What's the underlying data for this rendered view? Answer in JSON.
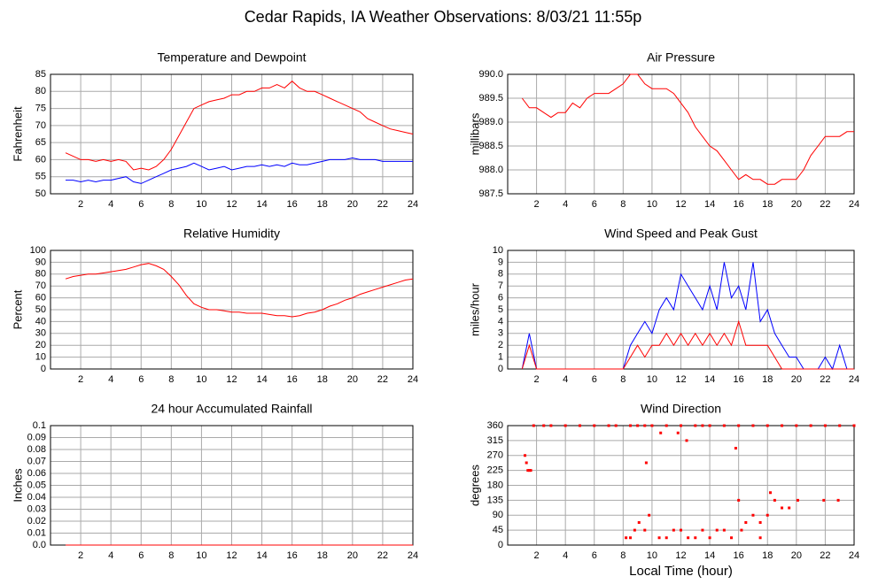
{
  "title": "Cedar Rapids, IA Weather Observations: 8/03/21 11:55p",
  "chart_data": [
    {
      "type": "line",
      "title": "Temperature and Dewpoint",
      "y_label": "Fahrenheit",
      "xlim": [
        0,
        24
      ],
      "xticks": [
        2,
        4,
        6,
        8,
        10,
        12,
        14,
        16,
        18,
        20,
        22,
        24
      ],
      "ylim": [
        50,
        85
      ],
      "yticks": [
        50,
        55,
        60,
        65,
        70,
        75,
        80,
        85
      ],
      "grid": true,
      "x": [
        1,
        1.5,
        2,
        2.5,
        3,
        3.5,
        4,
        4.5,
        5,
        5.5,
        6,
        6.5,
        7,
        7.5,
        8,
        8.5,
        9,
        9.5,
        10,
        10.5,
        11,
        11.5,
        12,
        12.5,
        13,
        13.5,
        14,
        14.5,
        15,
        15.5,
        16,
        16.5,
        17,
        17.5,
        18,
        18.5,
        19,
        19.5,
        20,
        20.5,
        21,
        21.5,
        22,
        22.5,
        23,
        23.5,
        24
      ],
      "series": [
        {
          "color": "#ff0000",
          "values": [
            62,
            61,
            60,
            60,
            59.5,
            60,
            59.5,
            60,
            59.5,
            57,
            57.5,
            57,
            58,
            60,
            63,
            67,
            71,
            75,
            76,
            77,
            77.5,
            78,
            79,
            79,
            80,
            80,
            81,
            81,
            82,
            81,
            83,
            81,
            80,
            80,
            79,
            78,
            77,
            76,
            75,
            74,
            72,
            71,
            70,
            69,
            68.5,
            68,
            67.5
          ]
        },
        {
          "color": "#0000ff",
          "values": [
            54,
            54,
            53.5,
            54,
            53.5,
            54,
            54,
            54.5,
            55,
            53.5,
            53,
            54,
            55,
            56,
            57,
            57.5,
            58,
            59,
            58,
            57,
            57.5,
            58,
            57,
            57.5,
            58,
            58,
            58.5,
            58,
            58.5,
            58,
            59,
            58.5,
            58.5,
            59,
            59.5,
            60,
            60,
            60,
            60.5,
            60,
            60,
            60,
            59.5,
            59.5,
            59.5,
            59.5,
            59.5
          ]
        }
      ]
    },
    {
      "type": "line",
      "title": "Air Pressure",
      "y_label": "millibars",
      "xlim": [
        0,
        24
      ],
      "xticks": [
        2,
        4,
        6,
        8,
        10,
        12,
        14,
        16,
        18,
        20,
        22,
        24
      ],
      "ylim": [
        987.5,
        990
      ],
      "yticks": [
        987.5,
        {
          "value": 988,
          "label": "988.0"
        },
        988.5,
        {
          "value": 989,
          "label": "989.0"
        },
        989.5,
        {
          "value": 990,
          "label": "990.0"
        }
      ],
      "grid": true,
      "x": [
        1,
        1.5,
        2,
        2.5,
        3,
        3.5,
        4,
        4.5,
        5,
        5.5,
        6,
        6.5,
        7,
        7.5,
        8,
        8.5,
        9,
        9.5,
        10,
        10.5,
        11,
        11.5,
        12,
        12.5,
        13,
        13.5,
        14,
        14.5,
        15,
        15.5,
        16,
        16.5,
        17,
        17.5,
        18,
        18.5,
        19,
        19.5,
        20,
        20.5,
        21,
        21.5,
        22,
        22.5,
        23,
        23.5,
        24
      ],
      "series": [
        {
          "color": "#ff0000",
          "values": [
            989.5,
            989.3,
            989.3,
            989.2,
            989.1,
            989.2,
            989.2,
            989.4,
            989.3,
            989.5,
            989.6,
            989.6,
            989.6,
            989.7,
            989.8,
            990,
            990,
            989.8,
            989.7,
            989.7,
            989.7,
            989.6,
            989.4,
            989.2,
            988.9,
            988.7,
            988.5,
            988.4,
            988.2,
            988,
            987.8,
            987.9,
            987.8,
            987.8,
            987.7,
            987.7,
            987.8,
            987.8,
            987.8,
            988,
            988.3,
            988.5,
            988.7,
            988.7,
            988.7,
            988.8,
            988.8
          ]
        }
      ]
    },
    {
      "type": "line",
      "title": "Relative Humidity",
      "y_label": "Percent",
      "xlim": [
        0,
        24
      ],
      "xticks": [
        2,
        4,
        6,
        8,
        10,
        12,
        14,
        16,
        18,
        20,
        22,
        24
      ],
      "ylim": [
        0,
        100
      ],
      "yticks": [
        0,
        10,
        20,
        30,
        40,
        50,
        60,
        70,
        80,
        90,
        100
      ],
      "grid": true,
      "x": [
        1,
        1.5,
        2,
        2.5,
        3,
        3.5,
        4,
        4.5,
        5,
        5.5,
        6,
        6.5,
        7,
        7.5,
        8,
        8.5,
        9,
        9.5,
        10,
        10.5,
        11,
        11.5,
        12,
        12.5,
        13,
        13.5,
        14,
        14.5,
        15,
        15.5,
        16,
        16.5,
        17,
        17.5,
        18,
        18.5,
        19,
        19.5,
        20,
        20.5,
        21,
        21.5,
        22,
        22.5,
        23,
        23.5,
        24
      ],
      "series": [
        {
          "color": "#ff0000",
          "values": [
            76,
            78,
            79,
            80,
            80,
            81,
            82,
            83,
            84,
            86,
            88,
            89,
            87,
            84,
            78,
            71,
            62,
            55,
            52,
            50,
            50,
            49,
            48,
            48,
            47,
            47,
            47,
            46,
            45,
            45,
            44,
            45,
            47,
            48,
            50,
            53,
            55,
            58,
            60,
            63,
            65,
            67,
            69,
            71,
            73,
            75,
            76
          ]
        }
      ]
    },
    {
      "type": "line",
      "title": "Wind Speed and Peak Gust",
      "y_label": "miles/hour",
      "xlim": [
        0,
        24
      ],
      "xticks": [
        2,
        4,
        6,
        8,
        10,
        12,
        14,
        16,
        18,
        20,
        22,
        24
      ],
      "ylim": [
        0,
        10
      ],
      "yticks": [
        0,
        1,
        2,
        3,
        4,
        5,
        6,
        7,
        8,
        9,
        10
      ],
      "grid": true,
      "x": [
        1,
        1.5,
        2,
        2.5,
        3,
        3.5,
        4,
        4.5,
        5,
        5.5,
        6,
        6.5,
        7,
        7.5,
        8,
        8.5,
        9,
        9.5,
        10,
        10.5,
        11,
        11.5,
        12,
        12.5,
        13,
        13.5,
        14,
        14.5,
        15,
        15.5,
        16,
        16.5,
        17,
        17.5,
        18,
        18.5,
        19,
        19.5,
        20,
        20.5,
        21,
        21.5,
        22,
        22.5,
        23,
        23.5,
        24
      ],
      "series": [
        {
          "color": "#0000ff",
          "values": [
            0,
            3,
            0,
            0,
            0,
            0,
            0,
            0,
            0,
            0,
            0,
            0,
            0,
            0,
            0,
            2,
            3,
            4,
            3,
            5,
            6,
            5,
            8,
            7,
            6,
            5,
            7,
            5,
            9,
            6,
            7,
            5,
            9,
            4,
            5,
            3,
            2,
            1,
            1,
            0,
            0,
            0,
            1,
            0,
            2,
            0,
            0
          ]
        },
        {
          "color": "#ff0000",
          "values": [
            0,
            2,
            0,
            0,
            0,
            0,
            0,
            0,
            0,
            0,
            0,
            0,
            0,
            0,
            0,
            1,
            2,
            1,
            2,
            2,
            3,
            2,
            3,
            2,
            3,
            2,
            3,
            2,
            3,
            2,
            4,
            2,
            2,
            2,
            2,
            1,
            0,
            0,
            0,
            0,
            0,
            0,
            0,
            0,
            0,
            0,
            0
          ]
        }
      ]
    },
    {
      "type": "line",
      "title": "24 hour Accumulated Rainfall",
      "y_label": "Inches",
      "xlim": [
        0,
        24
      ],
      "xticks": [
        2,
        4,
        6,
        8,
        10,
        12,
        14,
        16,
        18,
        20,
        22,
        24
      ],
      "ylim": [
        0,
        0.1
      ],
      "yticks": [
        {
          "value": 0,
          "label": "0.0"
        },
        0.01,
        0.02,
        0.03,
        0.04,
        0.05,
        0.06,
        0.07,
        0.08,
        0.09,
        0.1
      ],
      "grid": true,
      "x": [
        1,
        24
      ],
      "series": [
        {
          "color": "#ff0000",
          "values": [
            0,
            0
          ]
        }
      ]
    },
    {
      "type": "scatter",
      "title": "Wind Direction",
      "y_label": "degrees",
      "x_label": "Local Time (hour)",
      "xlim": [
        0,
        24
      ],
      "xticks": [
        2,
        4,
        6,
        8,
        10,
        12,
        14,
        16,
        18,
        20,
        22,
        24
      ],
      "ylim": [
        0,
        360
      ],
      "yticks": [
        0,
        45,
        90,
        135,
        180,
        225,
        270,
        315,
        360
      ],
      "grid": true,
      "x": [
        1.2,
        1.3,
        1.4,
        1.5,
        1.6,
        1.8,
        2.5,
        3,
        4,
        5,
        6,
        7,
        7.5,
        8.5,
        9,
        9.5,
        10,
        11,
        12,
        13,
        14,
        15,
        16,
        17,
        18,
        19,
        20,
        21,
        22,
        23,
        24,
        8.2,
        8.5,
        8.8,
        9.1,
        9.5,
        9.8,
        10.5,
        11,
        11.5,
        12,
        12.5,
        13,
        13.5,
        14,
        14.5,
        15,
        15.5,
        16,
        16.5,
        17,
        17.5,
        18,
        18.5,
        19,
        19.5,
        20.1,
        10.6,
        9.6,
        11.8,
        12.4,
        13.5,
        15.8,
        16.2,
        17.5,
        18.2,
        21.9,
        22.9
      ],
      "series": [
        {
          "color": "#ff0000",
          "values": [
            270,
            248,
            225,
            225,
            225,
            360,
            360,
            360,
            360,
            360,
            360,
            360,
            360,
            360,
            360,
            360,
            360,
            360,
            360,
            360,
            360,
            360,
            360,
            360,
            360,
            360,
            360,
            360,
            360,
            360,
            360,
            22,
            22,
            45,
            68,
            45,
            90,
            22,
            22,
            45,
            45,
            22,
            22,
            45,
            22,
            45,
            45,
            22,
            135,
            68,
            90,
            68,
            90,
            135,
            112,
            112,
            135,
            338,
            248,
            338,
            315,
            360,
            292,
            45,
            22,
            158,
            135,
            135
          ]
        }
      ]
    }
  ]
}
